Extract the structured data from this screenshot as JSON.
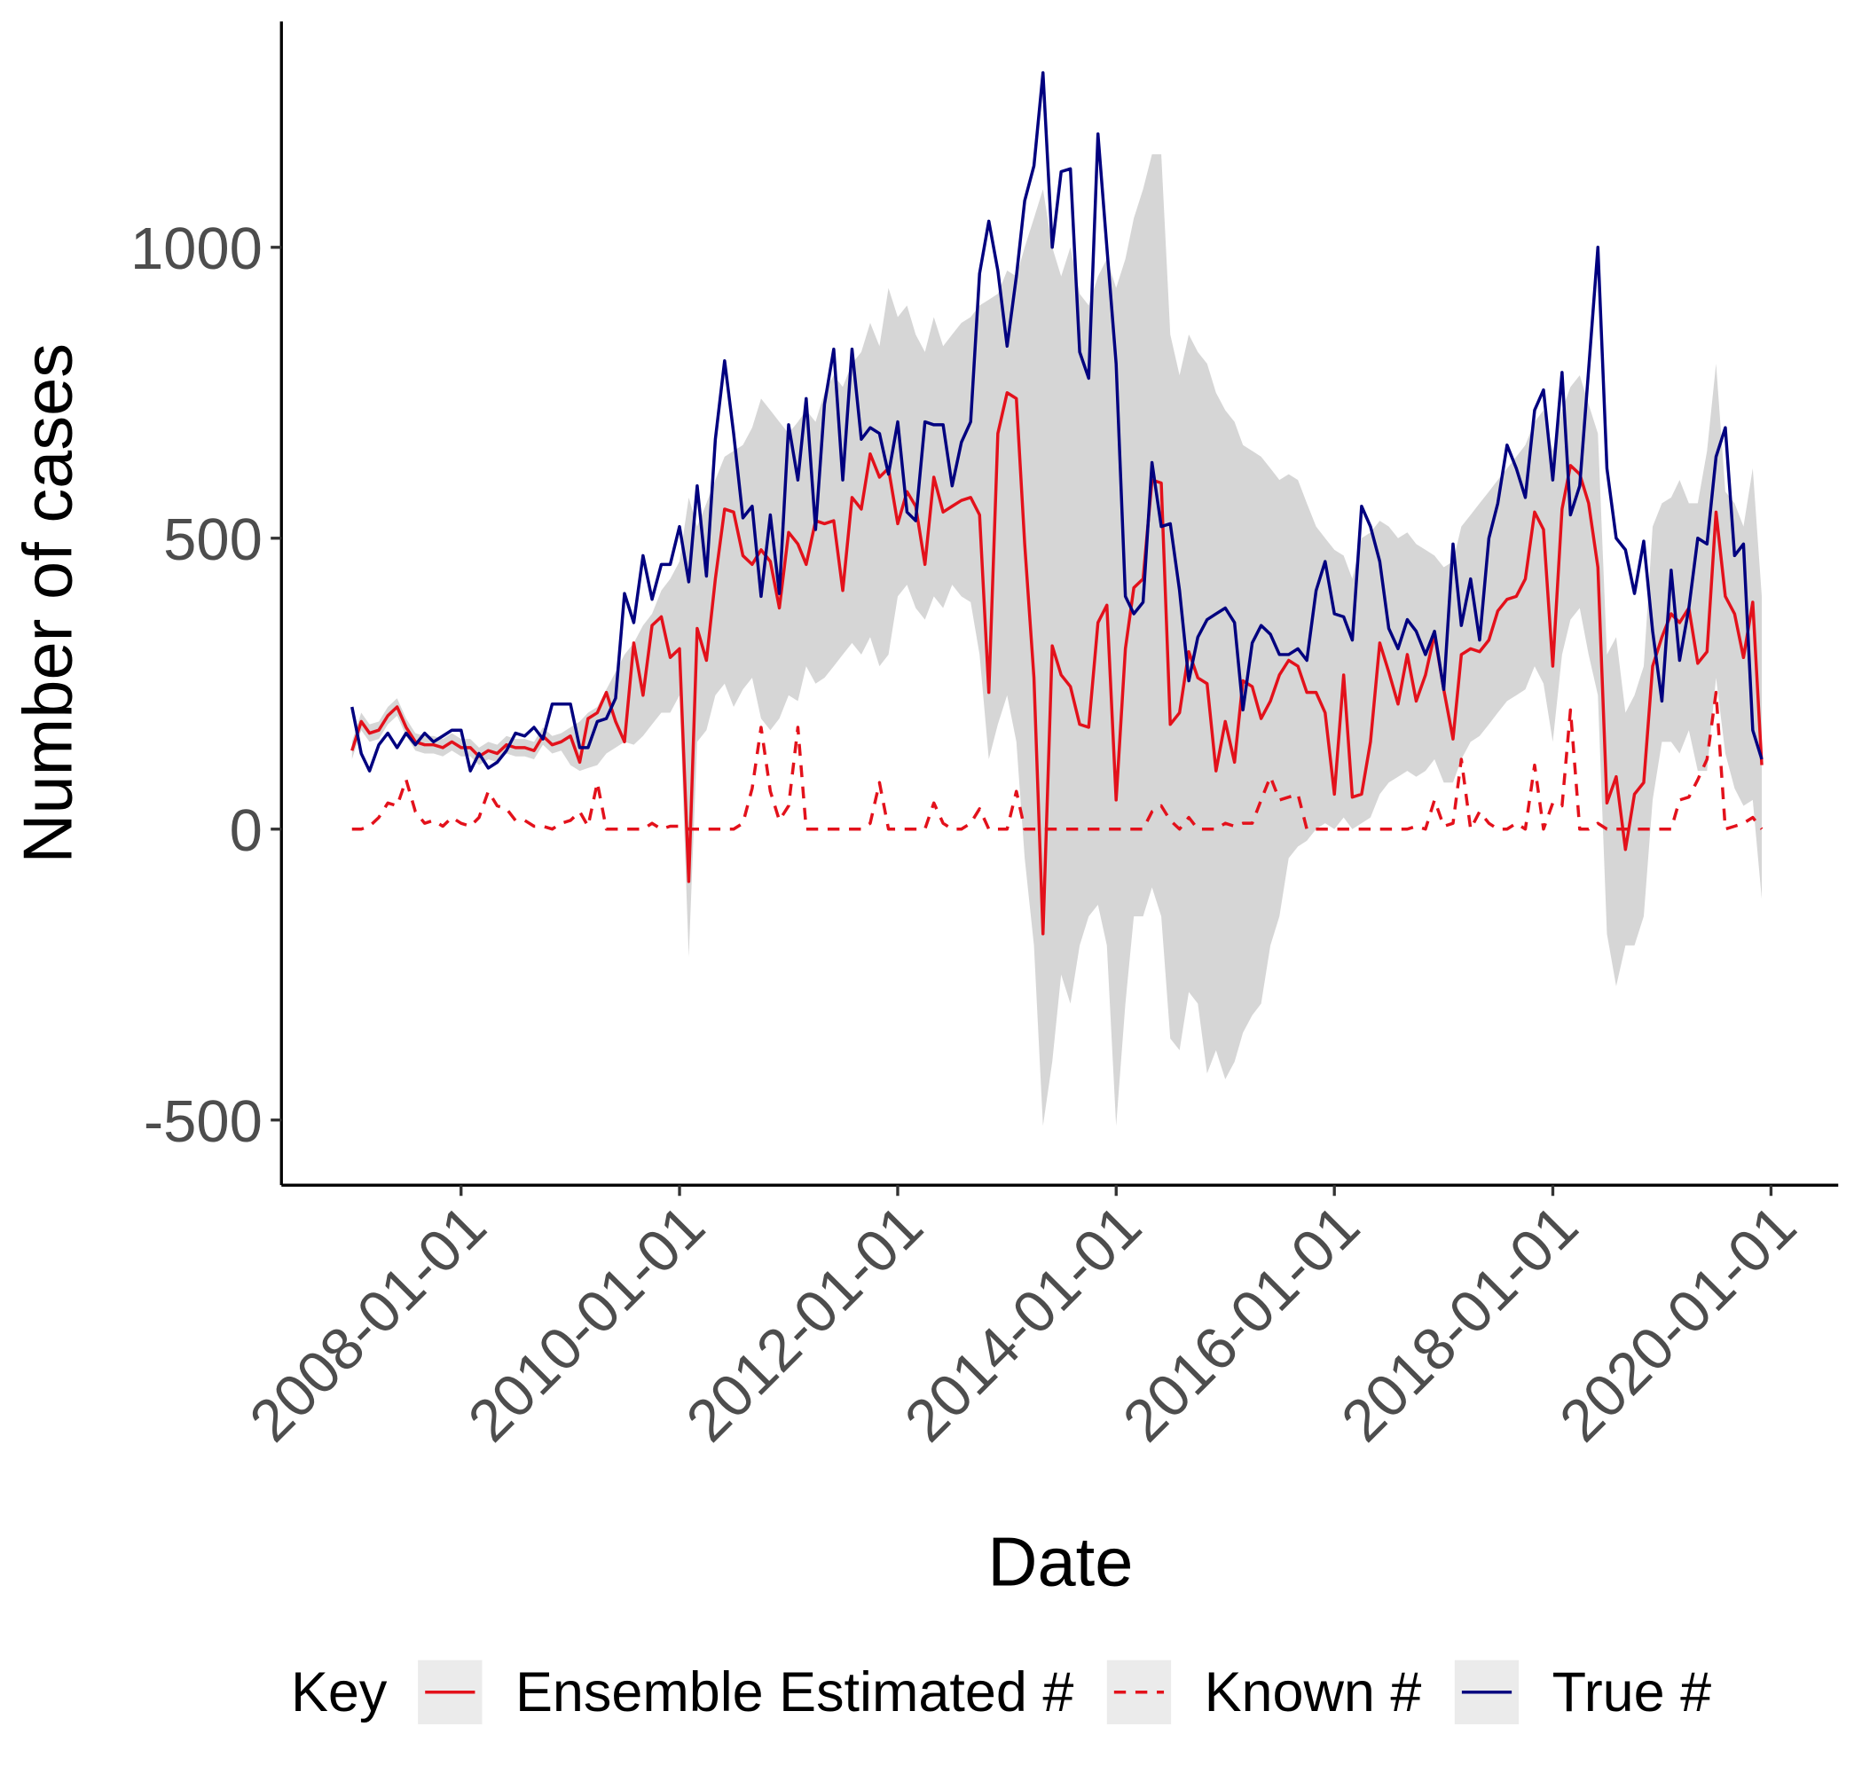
{
  "chart_data": {
    "type": "line",
    "x_label": "Date",
    "y_label": "Number of cases",
    "legend_title": "Key",
    "legend_position": "bottom",
    "xlim": [
      "2006-05-10",
      "2020-08-13"
    ],
    "ylim": [
      -612,
      1388
    ],
    "xticks": [
      "2008-01-01",
      "2010-01-01",
      "2012-01-01",
      "2014-01-01",
      "2016-01-01",
      "2018-01-01",
      "2020-01-01"
    ],
    "yticks": [
      -500,
      0,
      500,
      1000
    ],
    "x": [
      "2007-01-01",
      "2007-02-01",
      "2007-03-01",
      "2007-04-01",
      "2007-05-01",
      "2007-06-01",
      "2007-07-01",
      "2007-08-01",
      "2007-09-01",
      "2007-10-01",
      "2007-11-01",
      "2007-12-01",
      "2008-01-01",
      "2008-02-01",
      "2008-03-01",
      "2008-04-01",
      "2008-05-01",
      "2008-06-01",
      "2008-07-01",
      "2008-08-01",
      "2008-09-01",
      "2008-10-01",
      "2008-11-01",
      "2008-12-01",
      "2009-01-01",
      "2009-02-01",
      "2009-03-01",
      "2009-04-01",
      "2009-05-01",
      "2009-06-01",
      "2009-07-01",
      "2009-08-01",
      "2009-09-01",
      "2009-10-01",
      "2009-11-01",
      "2009-12-01",
      "2010-01-01",
      "2010-02-01",
      "2010-03-01",
      "2010-04-01",
      "2010-05-01",
      "2010-06-01",
      "2010-07-01",
      "2010-08-01",
      "2010-09-01",
      "2010-10-01",
      "2010-11-01",
      "2010-12-01",
      "2011-01-01",
      "2011-02-01",
      "2011-03-01",
      "2011-04-01",
      "2011-05-01",
      "2011-06-01",
      "2011-07-01",
      "2011-08-01",
      "2011-09-01",
      "2011-10-01",
      "2011-11-01",
      "2011-12-01",
      "2012-01-01",
      "2012-02-01",
      "2012-03-01",
      "2012-04-01",
      "2012-05-01",
      "2012-06-01",
      "2012-07-01",
      "2012-08-01",
      "2012-09-01",
      "2012-10-01",
      "2012-11-01",
      "2012-12-01",
      "2013-01-01",
      "2013-02-01",
      "2013-03-01",
      "2013-04-01",
      "2013-05-01",
      "2013-06-01",
      "2013-07-01",
      "2013-08-01",
      "2013-09-01",
      "2013-10-01",
      "2013-11-01",
      "2013-12-01",
      "2014-01-01",
      "2014-02-01",
      "2014-03-01",
      "2014-04-01",
      "2014-05-01",
      "2014-06-01",
      "2014-07-01",
      "2014-08-01",
      "2014-09-01",
      "2014-10-01",
      "2014-11-01",
      "2014-12-01",
      "2015-01-01",
      "2015-02-01",
      "2015-03-01",
      "2015-04-01",
      "2015-05-01",
      "2015-06-01",
      "2015-07-01",
      "2015-08-01",
      "2015-09-01",
      "2015-10-01",
      "2015-11-01",
      "2015-12-01",
      "2016-01-01",
      "2016-02-01",
      "2016-03-01",
      "2016-04-01",
      "2016-05-01",
      "2016-06-01",
      "2016-07-01",
      "2016-08-01",
      "2016-09-01",
      "2016-10-01",
      "2016-11-01",
      "2016-12-01",
      "2017-01-01",
      "2017-02-01",
      "2017-03-01",
      "2017-04-01",
      "2017-05-01",
      "2017-06-01",
      "2017-07-01",
      "2017-08-01",
      "2017-09-01",
      "2017-10-01",
      "2017-11-01",
      "2017-12-01",
      "2018-01-01",
      "2018-02-01",
      "2018-03-01",
      "2018-04-01",
      "2018-05-01",
      "2018-06-01",
      "2018-07-01",
      "2018-08-01",
      "2018-09-01",
      "2018-10-01",
      "2018-11-01",
      "2018-12-01",
      "2019-01-01",
      "2019-02-01",
      "2019-03-01",
      "2019-04-01",
      "2019-05-01",
      "2019-06-01",
      "2019-07-01",
      "2019-08-01",
      "2019-09-01",
      "2019-10-01",
      "2019-11-01",
      "2019-12-01"
    ],
    "band": {
      "color": "#d6d6d6",
      "lower": [
        120,
        170,
        150,
        155,
        180,
        195,
        160,
        135,
        130,
        130,
        125,
        135,
        125,
        125,
        110,
        120,
        115,
        130,
        125,
        125,
        120,
        145,
        130,
        135,
        110,
        100,
        105,
        110,
        130,
        140,
        150,
        145,
        160,
        180,
        200,
        200,
        230,
        -220,
        150,
        170,
        230,
        250,
        210,
        240,
        260,
        190,
        170,
        190,
        230,
        220,
        280,
        250,
        260,
        280,
        300,
        320,
        300,
        330,
        280,
        300,
        400,
        420,
        380,
        360,
        400,
        380,
        420,
        400,
        390,
        300,
        120,
        180,
        230,
        150,
        -50,
        -200,
        -510,
        -400,
        -250,
        -300,
        -200,
        -150,
        -130,
        -200,
        -510,
        -300,
        -150,
        -150,
        -100,
        -150,
        -360,
        -380,
        -280,
        -300,
        -420,
        -380,
        -430,
        -400,
        -350,
        -320,
        -300,
        -200,
        -150,
        -50,
        -30,
        -20,
        0,
        10,
        0,
        20,
        0,
        10,
        20,
        60,
        80,
        90,
        100,
        90,
        100,
        120,
        80,
        80,
        120,
        150,
        160,
        180,
        200,
        220,
        230,
        240,
        280,
        250,
        150,
        300,
        360,
        380,
        300,
        230,
        -180,
        -270,
        -200,
        -200,
        -150,
        50,
        150,
        150,
        130,
        170,
        100,
        100,
        260,
        130,
        70,
        40,
        50,
        -120
      ],
      "upper": [
        150,
        200,
        180,
        185,
        210,
        225,
        190,
        165,
        160,
        160,
        155,
        165,
        155,
        155,
        140,
        150,
        145,
        160,
        155,
        155,
        150,
        175,
        160,
        165,
        175,
        185,
        200,
        210,
        240,
        270,
        300,
        320,
        350,
        370,
        410,
        430,
        460,
        570,
        520,
        560,
        600,
        640,
        650,
        660,
        690,
        740,
        720,
        700,
        680,
        700,
        720,
        700,
        750,
        780,
        760,
        800,
        820,
        870,
        830,
        930,
        880,
        900,
        850,
        820,
        880,
        830,
        850,
        870,
        880,
        900,
        910,
        920,
        960,
        950,
        1000,
        1050,
        1100,
        1000,
        950,
        1000,
        920,
        900,
        950,
        980,
        930,
        980,
        1050,
        1100,
        1160,
        1160,
        850,
        780,
        850,
        820,
        800,
        750,
        720,
        700,
        660,
        650,
        640,
        620,
        600,
        610,
        600,
        560,
        520,
        500,
        480,
        470,
        430,
        500,
        510,
        530,
        520,
        500,
        510,
        490,
        480,
        470,
        450,
        460,
        520,
        540,
        560,
        580,
        600,
        620,
        640,
        660,
        700,
        720,
        650,
        720,
        760,
        780,
        730,
        680,
        300,
        330,
        200,
        230,
        280,
        520,
        560,
        570,
        600,
        560,
        560,
        650,
        800,
        580,
        560,
        520,
        620,
        400
      ]
    },
    "series": [
      {
        "name": "Ensemble Estimated #",
        "color": "#e3111b",
        "linestyle": "solid",
        "values": [
          135,
          185,
          165,
          170,
          195,
          210,
          175,
          150,
          145,
          145,
          140,
          150,
          140,
          140,
          125,
          135,
          130,
          145,
          140,
          140,
          135,
          160,
          145,
          150,
          160,
          115,
          190,
          200,
          235,
          185,
          150,
          320,
          230,
          350,
          365,
          295,
          310,
          -90,
          345,
          290,
          430,
          550,
          545,
          470,
          455,
          480,
          460,
          380,
          510,
          490,
          455,
          530,
          525,
          530,
          410,
          570,
          550,
          645,
          605,
          620,
          525,
          580,
          555,
          455,
          605,
          545,
          555,
          565,
          570,
          540,
          235,
          680,
          750,
          740,
          490,
          260,
          -180,
          315,
          265,
          245,
          180,
          175,
          355,
          385,
          50,
          310,
          415,
          430,
          600,
          595,
          180,
          200,
          305,
          260,
          250,
          100,
          185,
          115,
          255,
          245,
          190,
          220,
          265,
          290,
          280,
          235,
          235,
          200,
          60,
          265,
          55,
          60,
          150,
          320,
          270,
          215,
          300,
          220,
          265,
          335,
          240,
          155,
          300,
          310,
          305,
          325,
          375,
          395,
          400,
          430,
          545,
          515,
          280,
          550,
          625,
          610,
          560,
          450,
          45,
          90,
          -35,
          60,
          80,
          280,
          330,
          370,
          355,
          380,
          285,
          305,
          545,
          400,
          370,
          295,
          390,
          110
        ]
      },
      {
        "name": "Known #",
        "color": "#e3111b",
        "linestyle": "dashed",
        "values": [
          0,
          0,
          5,
          20,
          45,
          40,
          85,
          30,
          10,
          15,
          5,
          20,
          10,
          5,
          20,
          65,
          40,
          35,
          15,
          15,
          5,
          5,
          0,
          10,
          15,
          30,
          5,
          80,
          0,
          0,
          0,
          0,
          0,
          10,
          0,
          5,
          5,
          0,
          0,
          0,
          0,
          0,
          0,
          10,
          70,
          175,
          65,
          15,
          40,
          175,
          0,
          0,
          0,
          0,
          0,
          0,
          0,
          10,
          80,
          0,
          0,
          0,
          0,
          0,
          45,
          10,
          0,
          0,
          10,
          35,
          0,
          0,
          0,
          65,
          0,
          0,
          0,
          0,
          0,
          0,
          0,
          0,
          0,
          0,
          0,
          0,
          0,
          0,
          30,
          40,
          15,
          0,
          20,
          0,
          0,
          0,
          10,
          5,
          10,
          10,
          50,
          90,
          50,
          55,
          60,
          0,
          0,
          0,
          0,
          0,
          0,
          0,
          0,
          0,
          0,
          0,
          0,
          5,
          0,
          50,
          5,
          10,
          120,
          0,
          30,
          10,
          0,
          0,
          10,
          0,
          110,
          0,
          45,
          40,
          205,
          0,
          0,
          10,
          0,
          0,
          0,
          0,
          0,
          0,
          0,
          0,
          50,
          55,
          85,
          120,
          235,
          0,
          5,
          10,
          20,
          0
        ]
      },
      {
        "name": "True #",
        "color": "#00007f",
        "linestyle": "solid",
        "values": [
          210,
          130,
          100,
          145,
          165,
          140,
          165,
          145,
          165,
          150,
          160,
          170,
          170,
          100,
          130,
          105,
          115,
          135,
          165,
          160,
          175,
          155,
          215,
          215,
          215,
          140,
          140,
          185,
          190,
          225,
          405,
          355,
          470,
          395,
          455,
          455,
          520,
          425,
          590,
          435,
          670,
          805,
          680,
          535,
          555,
          400,
          540,
          405,
          695,
          600,
          740,
          515,
          730,
          825,
          600,
          825,
          670,
          690,
          680,
          610,
          700,
          545,
          530,
          700,
          695,
          695,
          590,
          665,
          700,
          955,
          1045,
          960,
          830,
          950,
          1080,
          1140,
          1300,
          1000,
          1130,
          1135,
          820,
          775,
          1195,
          1000,
          800,
          400,
          370,
          390,
          630,
          520,
          525,
          410,
          255,
          330,
          360,
          370,
          380,
          355,
          205,
          320,
          350,
          335,
          300,
          300,
          310,
          290,
          410,
          460,
          370,
          365,
          325,
          555,
          520,
          460,
          345,
          310,
          360,
          340,
          300,
          340,
          240,
          490,
          350,
          430,
          325,
          500,
          560,
          660,
          620,
          570,
          720,
          755,
          600,
          785,
          540,
          590,
          790,
          1000,
          620,
          500,
          480,
          405,
          495,
          340,
          220,
          445,
          290,
          380,
          500,
          490,
          640,
          690,
          470,
          490,
          170,
          120
        ]
      }
    ]
  }
}
